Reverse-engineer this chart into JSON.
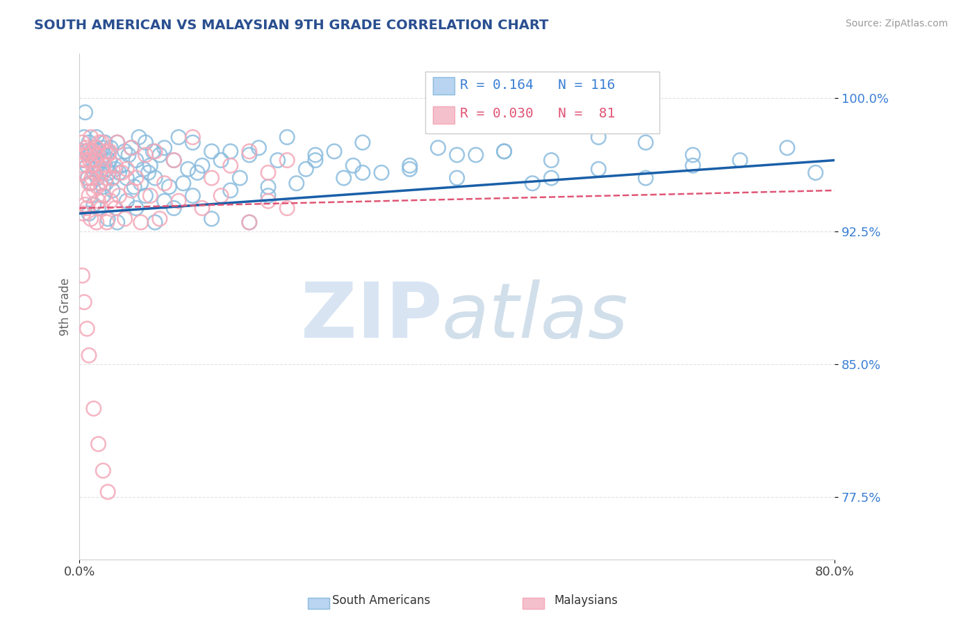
{
  "title": "SOUTH AMERICAN VS MALAYSIAN 9TH GRADE CORRELATION CHART",
  "source": "Source: ZipAtlas.com",
  "ylabel": "9th Grade",
  "y_ticks": [
    77.5,
    85.0,
    92.5,
    100.0
  ],
  "y_tick_labels": [
    "77.5%",
    "85.0%",
    "92.5%",
    "100.0%"
  ],
  "xlim": [
    0.0,
    80.0
  ],
  "ylim": [
    74.0,
    102.5
  ],
  "r_blue": 0.164,
  "n_blue": 116,
  "r_pink": 0.03,
  "n_pink": 81,
  "blue_color": "#8bbcde",
  "pink_color": "#f4a8b8",
  "blue_line_color": "#1a5fa8",
  "pink_line_color": "#e05575",
  "watermark_zip_color": "#b8cfe8",
  "watermark_atlas_color": "#9ab8d4",
  "background_color": "#ffffff",
  "title_color": "#2a4f90",
  "source_color": "#999999",
  "axis_label_color": "#666666",
  "tick_color": "#3a7fd4",
  "grid_color": "#e0e0e0",
  "legend_box_color_blue": "#b8d4f0",
  "legend_box_color_pink": "#f4c0cc",
  "blue_scatter_x": [
    0.3,
    0.5,
    0.6,
    0.7,
    0.8,
    0.9,
    1.0,
    1.1,
    1.2,
    1.3,
    1.4,
    1.5,
    1.6,
    1.7,
    1.8,
    1.9,
    2.0,
    2.1,
    2.2,
    2.3,
    2.4,
    2.5,
    2.6,
    2.7,
    2.8,
    2.9,
    3.0,
    3.1,
    3.2,
    3.3,
    3.5,
    3.8,
    4.0,
    4.2,
    4.5,
    4.8,
    5.0,
    5.2,
    5.5,
    5.8,
    6.0,
    6.3,
    6.5,
    6.8,
    7.0,
    7.3,
    7.5,
    7.8,
    8.0,
    8.5,
    9.0,
    9.5,
    10.0,
    10.5,
    11.0,
    11.5,
    12.0,
    12.5,
    13.0,
    14.0,
    15.0,
    16.0,
    17.0,
    18.0,
    19.0,
    20.0,
    21.0,
    22.0,
    23.0,
    24.0,
    25.0,
    27.0,
    28.0,
    29.0,
    30.0,
    32.0,
    35.0,
    38.0,
    40.0,
    42.0,
    45.0,
    48.0,
    50.0,
    55.0,
    60.0,
    65.0,
    1.0,
    1.5,
    2.0,
    2.5,
    3.0,
    3.5,
    4.0,
    5.0,
    6.0,
    7.0,
    8.0,
    9.0,
    10.0,
    12.0,
    14.0,
    16.0,
    18.0,
    20.0,
    25.0,
    30.0,
    35.0,
    40.0,
    45.0,
    50.0,
    55.0,
    60.0,
    65.0,
    70.0,
    75.0,
    78.0
  ],
  "blue_scatter_y": [
    96.5,
    97.8,
    99.2,
    97.0,
    96.2,
    95.5,
    97.5,
    96.8,
    95.2,
    97.0,
    96.5,
    95.8,
    97.2,
    96.0,
    97.8,
    95.5,
    96.2,
    97.0,
    95.8,
    96.5,
    97.2,
    95.0,
    96.8,
    97.5,
    95.2,
    96.0,
    97.0,
    95.8,
    96.5,
    97.2,
    95.5,
    96.0,
    97.5,
    95.8,
    96.2,
    97.0,
    95.5,
    96.8,
    97.2,
    95.0,
    96.5,
    97.8,
    95.2,
    96.0,
    97.5,
    95.8,
    96.2,
    97.0,
    95.5,
    96.8,
    97.2,
    95.0,
    96.5,
    97.8,
    95.2,
    96.0,
    97.5,
    95.8,
    96.2,
    97.0,
    96.5,
    97.0,
    95.5,
    96.8,
    97.2,
    95.0,
    96.5,
    97.8,
    95.2,
    96.0,
    96.8,
    97.0,
    95.5,
    96.2,
    97.5,
    95.8,
    96.0,
    97.2,
    95.5,
    96.8,
    97.0,
    95.2,
    96.5,
    97.8,
    95.5,
    96.2,
    93.5,
    94.0,
    93.8,
    94.5,
    93.2,
    94.8,
    93.0,
    94.2,
    93.8,
    94.5,
    93.0,
    94.2,
    93.8,
    94.5,
    93.2,
    94.8,
    93.0,
    94.5,
    96.5,
    95.8,
    96.2,
    96.8,
    97.0,
    95.5,
    96.0,
    97.5,
    96.8,
    96.5,
    97.2,
    95.8
  ],
  "pink_scatter_x": [
    0.2,
    0.3,
    0.4,
    0.5,
    0.5,
    0.6,
    0.7,
    0.8,
    0.9,
    1.0,
    1.0,
    1.1,
    1.2,
    1.3,
    1.4,
    1.5,
    1.6,
    1.7,
    1.8,
    1.9,
    2.0,
    2.1,
    2.2,
    2.3,
    2.4,
    2.5,
    2.6,
    2.7,
    2.8,
    3.0,
    3.2,
    3.5,
    3.8,
    4.0,
    4.5,
    5.0,
    5.5,
    6.0,
    7.0,
    8.0,
    9.0,
    10.0,
    12.0,
    14.0,
    16.0,
    18.0,
    20.0,
    22.0,
    0.4,
    0.6,
    0.8,
    1.0,
    1.2,
    1.5,
    1.8,
    2.0,
    2.3,
    2.6,
    2.9,
    3.3,
    3.8,
    4.2,
    4.8,
    5.5,
    6.5,
    7.5,
    8.5,
    10.5,
    13.0,
    15.0,
    18.0,
    20.0,
    22.0,
    0.3,
    0.5,
    0.8,
    1.0,
    1.5,
    2.0,
    2.5,
    3.0
  ],
  "pink_scatter_y": [
    96.8,
    97.5,
    96.2,
    97.0,
    95.8,
    96.5,
    97.2,
    95.5,
    96.8,
    97.0,
    95.2,
    96.5,
    97.8,
    95.5,
    96.2,
    97.0,
    95.8,
    96.5,
    97.2,
    95.0,
    96.8,
    97.5,
    95.2,
    96.0,
    97.5,
    95.8,
    96.2,
    97.0,
    95.5,
    96.8,
    97.0,
    95.5,
    96.2,
    97.5,
    95.8,
    96.0,
    97.2,
    95.5,
    96.8,
    97.0,
    95.2,
    96.5,
    97.8,
    95.5,
    96.2,
    97.0,
    95.8,
    96.5,
    93.5,
    94.0,
    93.8,
    94.5,
    93.2,
    94.8,
    93.0,
    94.2,
    93.8,
    94.5,
    93.0,
    94.2,
    93.8,
    94.5,
    93.2,
    94.8,
    93.0,
    94.5,
    93.2,
    94.2,
    93.8,
    94.5,
    93.0,
    94.2,
    93.8,
    90.0,
    88.5,
    87.0,
    85.5,
    82.5,
    80.5,
    79.0,
    77.8
  ],
  "blue_trend_x": [
    0.0,
    80.0
  ],
  "blue_trend_y": [
    93.5,
    96.5
  ],
  "pink_trend_x": [
    0.0,
    80.0
  ],
  "pink_trend_y": [
    93.8,
    94.8
  ]
}
